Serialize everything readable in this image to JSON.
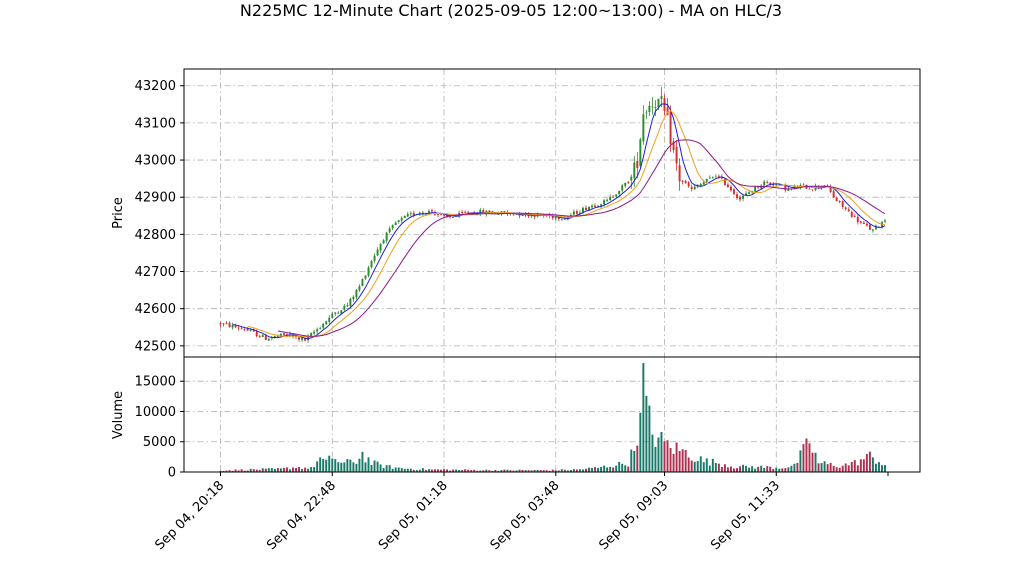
{
  "chart_data": {
    "type": "candlestick",
    "title": "N225MC 12-Minute Chart (2025-09-05 12:00~13:00) - MA on HLC/3",
    "price_panel": {
      "ylabel": "Price",
      "ylim": [
        42470,
        43245
      ],
      "yticks": [
        42500,
        42600,
        42700,
        42800,
        42900,
        43000,
        43100,
        43200
      ],
      "ytick_labels": [
        "42500",
        "42600",
        "42700",
        "42800",
        "42900",
        "43000",
        "43100",
        "43200"
      ],
      "grid": true,
      "up_color": "#2e8b2e",
      "down_color": "#d03030",
      "price_keypoints": [
        [
          0,
          42560
        ],
        [
          8,
          42545
        ],
        [
          15,
          42520
        ],
        [
          22,
          42530
        ],
        [
          28,
          42515
        ],
        [
          34,
          42560
        ],
        [
          38,
          42590
        ],
        [
          42,
          42610
        ],
        [
          46,
          42660
        ],
        [
          50,
          42730
        ],
        [
          54,
          42790
        ],
        [
          58,
          42830
        ],
        [
          62,
          42850
        ],
        [
          66,
          42860
        ],
        [
          70,
          42862
        ],
        [
          74,
          42845
        ],
        [
          78,
          42850
        ],
        [
          82,
          42858
        ],
        [
          86,
          42860
        ],
        [
          90,
          42858
        ],
        [
          100,
          42855
        ],
        [
          108,
          42850
        ],
        [
          114,
          42845
        ],
        [
          118,
          42860
        ],
        [
          122,
          42875
        ],
        [
          128,
          42890
        ],
        [
          132,
          42920
        ],
        [
          136,
          42950
        ],
        [
          138,
          43000
        ],
        [
          140,
          43130
        ],
        [
          142,
          43150
        ],
        [
          144,
          43160
        ],
        [
          146,
          43150
        ],
        [
          148,
          43100
        ],
        [
          150,
          43020
        ],
        [
          152,
          42950
        ],
        [
          156,
          42920
        ],
        [
          160,
          42940
        ],
        [
          164,
          42960
        ],
        [
          168,
          42930
        ],
        [
          172,
          42895
        ],
        [
          176,
          42920
        ],
        [
          180,
          42940
        ],
        [
          184,
          42935
        ],
        [
          188,
          42920
        ],
        [
          192,
          42930
        ],
        [
          196,
          42925
        ],
        [
          200,
          42935
        ],
        [
          204,
          42890
        ],
        [
          208,
          42860
        ],
        [
          212,
          42830
        ],
        [
          216,
          42810
        ],
        [
          220,
          42840
        ]
      ],
      "ma_lines": [
        {
          "color": "#1f1fd6",
          "period": 5
        },
        {
          "color": "#f0a020",
          "period": 10
        },
        {
          "color": "#8b1a8b",
          "period": 20
        }
      ]
    },
    "volume_panel": {
      "ylabel": "Volume",
      "ylim": [
        0,
        19000
      ],
      "yticks": [
        0,
        5000,
        10000,
        15000
      ],
      "ytick_labels": [
        "0",
        "5000",
        "10000",
        "15000"
      ],
      "grid": true,
      "volume_keypoints": [
        [
          0,
          250
        ],
        [
          10,
          400
        ],
        [
          20,
          500
        ],
        [
          25,
          800
        ],
        [
          30,
          600
        ],
        [
          33,
          2200
        ],
        [
          35,
          1500
        ],
        [
          37,
          2600
        ],
        [
          40,
          1400
        ],
        [
          45,
          1800
        ],
        [
          47,
          3000
        ],
        [
          50,
          1500
        ],
        [
          55,
          900
        ],
        [
          60,
          600
        ],
        [
          70,
          400
        ],
        [
          80,
          350
        ],
        [
          90,
          300
        ],
        [
          100,
          300
        ],
        [
          110,
          300
        ],
        [
          118,
          400
        ],
        [
          125,
          700
        ],
        [
          135,
          1500
        ],
        [
          137,
          4000
        ],
        [
          139,
          10000
        ],
        [
          140,
          18000
        ],
        [
          141,
          10000
        ],
        [
          143,
          6500
        ],
        [
          146,
          5000
        ],
        [
          150,
          4000
        ],
        [
          155,
          3000
        ],
        [
          160,
          1800
        ],
        [
          165,
          1500
        ],
        [
          170,
          900
        ],
        [
          180,
          800
        ],
        [
          185,
          700
        ],
        [
          190,
          1000
        ],
        [
          195,
          5000
        ],
        [
          198,
          1500
        ],
        [
          205,
          1000
        ],
        [
          210,
          1500
        ],
        [
          215,
          2600
        ],
        [
          220,
          1200
        ]
      ]
    },
    "x_axis": {
      "n_bars": 221,
      "tick_bar_index": [
        0,
        37,
        74,
        111,
        147,
        184
      ],
      "tick_labels": [
        "Sep 04, 20:18",
        "Sep 04, 22:48",
        "Sep 05, 01:18",
        "Sep 05, 03:48",
        "Sep 05, 09:03",
        "Sep 05, 11:33"
      ]
    }
  }
}
